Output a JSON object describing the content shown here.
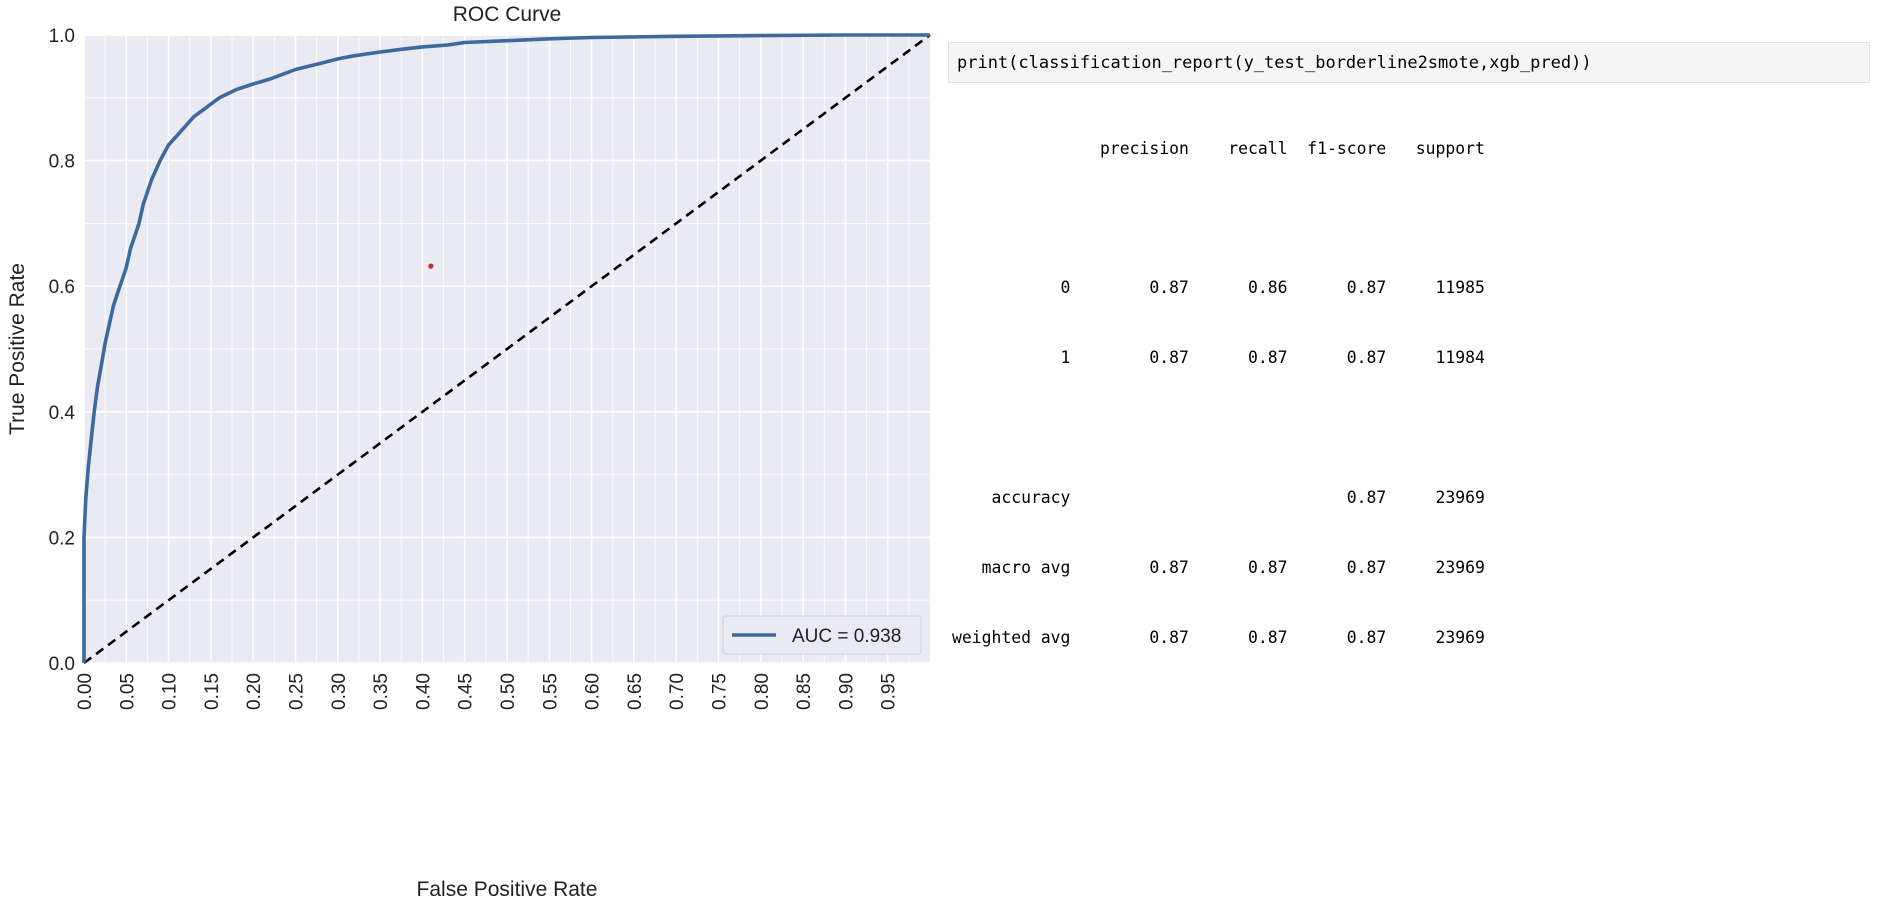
{
  "chart_data": {
    "type": "line",
    "title": "ROC Curve",
    "xlabel": "False Positive Rate",
    "ylabel": "True Positive Rate",
    "xlim": [
      0,
      1
    ],
    "ylim": [
      0,
      1
    ],
    "grid": true,
    "legend_position": "lower-right",
    "x_ticks": [
      "0.00",
      "0.05",
      "0.10",
      "0.15",
      "0.20",
      "0.25",
      "0.30",
      "0.35",
      "0.40",
      "0.45",
      "0.50",
      "0.55",
      "0.60",
      "0.65",
      "0.70",
      "0.75",
      "0.80",
      "0.85",
      "0.90",
      "0.95"
    ],
    "y_ticks": [
      "0.0",
      "0.2",
      "0.4",
      "0.6",
      "0.8",
      "1.0"
    ],
    "series": [
      {
        "name": "AUC = 0.938",
        "color": "#3d6a9e",
        "x": [
          0.0,
          0.0,
          0.002,
          0.005,
          0.008,
          0.012,
          0.016,
          0.02,
          0.025,
          0.03,
          0.035,
          0.04,
          0.045,
          0.05,
          0.055,
          0.06,
          0.065,
          0.07,
          0.075,
          0.08,
          0.09,
          0.1,
          0.11,
          0.12,
          0.13,
          0.14,
          0.15,
          0.16,
          0.18,
          0.2,
          0.22,
          0.23,
          0.25,
          0.28,
          0.3,
          0.32,
          0.35,
          0.38,
          0.4,
          0.43,
          0.45,
          0.5,
          0.55,
          0.6,
          0.65,
          0.7,
          0.8,
          0.9,
          1.0
        ],
        "y": [
          0.0,
          0.2,
          0.26,
          0.31,
          0.35,
          0.4,
          0.44,
          0.47,
          0.51,
          0.54,
          0.57,
          0.59,
          0.61,
          0.63,
          0.66,
          0.68,
          0.7,
          0.73,
          0.75,
          0.77,
          0.8,
          0.825,
          0.84,
          0.855,
          0.87,
          0.88,
          0.89,
          0.9,
          0.913,
          0.922,
          0.93,
          0.935,
          0.945,
          0.955,
          0.962,
          0.967,
          0.973,
          0.978,
          0.981,
          0.984,
          0.988,
          0.991,
          0.994,
          0.996,
          0.997,
          0.998,
          0.999,
          1.0,
          1.0
        ]
      }
    ],
    "reference_line": {
      "style": "dashed",
      "color": "#000000",
      "x": [
        0,
        1
      ],
      "y": [
        0,
        1
      ]
    },
    "marker": {
      "x": 0.41,
      "y": 0.632,
      "color": "#c62828"
    }
  },
  "code": {
    "command": "print(classification_report(y_test_borderline2smote,xgb_pred))"
  },
  "report": {
    "header": [
      "",
      "precision",
      "recall",
      "f1-score",
      "support"
    ],
    "rows": [
      {
        "label": "0",
        "precision": "0.87",
        "recall": "0.86",
        "f1": "0.87",
        "support": "11985"
      },
      {
        "label": "1",
        "precision": "0.87",
        "recall": "0.87",
        "f1": "0.87",
        "support": "11984"
      },
      {
        "label": "accuracy",
        "precision": "",
        "recall": "",
        "f1": "0.87",
        "support": "23969"
      },
      {
        "label": "macro avg",
        "precision": "0.87",
        "recall": "0.87",
        "f1": "0.87",
        "support": "23969"
      },
      {
        "label": "weighted avg",
        "precision": "0.87",
        "recall": "0.87",
        "f1": "0.87",
        "support": "23969"
      }
    ]
  }
}
